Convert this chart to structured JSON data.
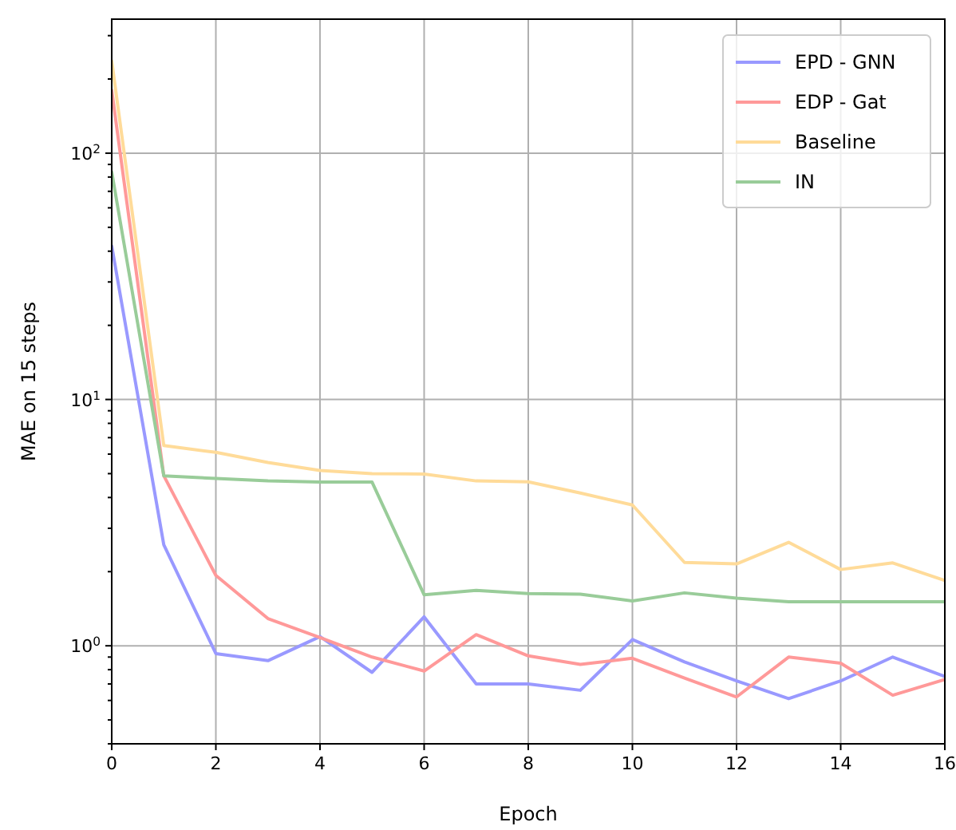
{
  "chart_data": {
    "type": "line",
    "xlabel": "Epoch",
    "ylabel": "MAE on 15 steps",
    "x": [
      0,
      1,
      2,
      3,
      4,
      5,
      6,
      7,
      8,
      9,
      10,
      11,
      12,
      13,
      14,
      15,
      16
    ],
    "series": [
      {
        "name": "EPD - GNN",
        "color": "#9999ff",
        "values": [
          42,
          2.57,
          0.93,
          0.87,
          1.09,
          0.78,
          1.31,
          0.7,
          0.7,
          0.66,
          1.06,
          0.86,
          0.72,
          0.61,
          0.72,
          0.9,
          0.75
        ]
      },
      {
        "name": "EDP - Gat",
        "color": "#ff9999",
        "values": [
          180,
          4.9,
          1.93,
          1.29,
          1.08,
          0.9,
          0.79,
          1.11,
          0.91,
          0.84,
          0.89,
          0.74,
          0.62,
          0.9,
          0.85,
          0.63,
          0.73
        ]
      },
      {
        "name": "Baseline",
        "color": "#ffdb99",
        "values": [
          237,
          6.5,
          6.1,
          5.55,
          5.15,
          5.0,
          4.98,
          4.67,
          4.63,
          4.17,
          3.73,
          2.18,
          2.15,
          2.63,
          2.04,
          2.17,
          1.84
        ]
      },
      {
        "name": "IN",
        "color": "#99cc99",
        "values": [
          84,
          4.9,
          4.78,
          4.67,
          4.62,
          4.62,
          1.61,
          1.68,
          1.63,
          1.62,
          1.52,
          1.64,
          1.56,
          1.51,
          1.51,
          1.51,
          1.51
        ]
      }
    ],
    "xlim": [
      0,
      16
    ],
    "xticks": [
      0,
      2,
      4,
      6,
      8,
      10,
      12,
      14,
      16
    ],
    "ylim": [
      0.4,
      350
    ],
    "yticks": [
      {
        "value": 0.4,
        "label": null
      },
      {
        "value": 0.5,
        "label": null
      },
      {
        "value": 0.6,
        "label": null
      },
      {
        "value": 0.7,
        "label": null
      },
      {
        "value": 0.8,
        "label": null
      },
      {
        "value": 0.9,
        "label": null
      },
      {
        "value": 1,
        "label": "10$^{0}$"
      },
      {
        "value": 2,
        "label": null
      },
      {
        "value": 3,
        "label": null
      },
      {
        "value": 4,
        "label": null
      },
      {
        "value": 5,
        "label": null
      },
      {
        "value": 6,
        "label": null
      },
      {
        "value": 7,
        "label": null
      },
      {
        "value": 8,
        "label": null
      },
      {
        "value": 9,
        "label": null
      },
      {
        "value": 10,
        "label": "10$^{1}$"
      },
      {
        "value": 20,
        "label": null
      },
      {
        "value": 30,
        "label": null
      },
      {
        "value": 40,
        "label": null
      },
      {
        "value": 50,
        "label": null
      },
      {
        "value": 60,
        "label": null
      },
      {
        "value": 70,
        "label": null
      },
      {
        "value": 80,
        "label": null
      },
      {
        "value": 90,
        "label": null
      },
      {
        "value": 100,
        "label": "10$^{2}$"
      },
      {
        "value": 200,
        "label": null
      },
      {
        "value": 300,
        "label": null
      }
    ],
    "log": "y",
    "grid": true,
    "legend": "top right",
    "marker": "none",
    "line_style": "solid"
  }
}
